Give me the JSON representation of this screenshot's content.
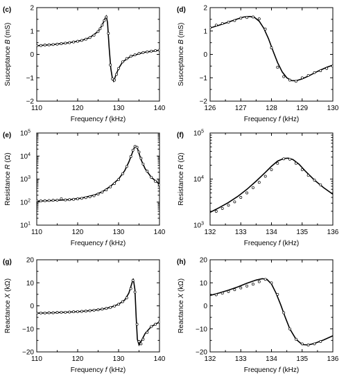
{
  "chart_data": [
    {
      "panel": "(c)",
      "type": "line",
      "xlabel": "Frequency f (kHz)",
      "ylabel": "Susceptance B (mS)",
      "xlim": [
        110,
        140
      ],
      "ylim": [
        -2,
        2
      ],
      "yscale": "linear",
      "xticks": [
        110,
        120,
        130,
        140
      ],
      "xticklabels": [
        "110",
        "120",
        "130",
        "140"
      ],
      "yticks": [
        -2,
        -1,
        0,
        1,
        2
      ],
      "yticklabels": [
        "−2",
        "−1",
        "0",
        "1",
        "2"
      ],
      "series": [
        {
          "style": "solid line",
          "x": [
            110,
            114,
            118,
            121,
            123,
            125,
            126,
            126.6,
            127,
            127.3,
            127.7,
            128.1,
            128.5,
            128.8,
            129.2,
            130,
            131,
            133,
            136,
            140
          ],
          "y": [
            0.37,
            0.42,
            0.5,
            0.6,
            0.72,
            0.98,
            1.25,
            1.5,
            1.63,
            1.35,
            0.3,
            -0.6,
            -1.05,
            -1.15,
            -0.95,
            -0.6,
            -0.32,
            -0.08,
            0.08,
            0.18
          ]
        },
        {
          "style": "open circles",
          "x": [
            110,
            111,
            112,
            113,
            114,
            115,
            116,
            117,
            118,
            119,
            120,
            121,
            122,
            123,
            124,
            125,
            125.5,
            126,
            126.5,
            127,
            127.5,
            128,
            128.5,
            129,
            129.5,
            130,
            131,
            132,
            133,
            134,
            135,
            136,
            137,
            138,
            139,
            140
          ],
          "y": [
            0.37,
            0.38,
            0.4,
            0.41,
            0.42,
            0.44,
            0.46,
            0.48,
            0.5,
            0.53,
            0.56,
            0.6,
            0.65,
            0.72,
            0.82,
            0.98,
            1.1,
            1.25,
            1.45,
            1.6,
            0.9,
            -0.45,
            -1.05,
            -1.1,
            -0.85,
            -0.6,
            -0.32,
            -0.18,
            -0.08,
            -0.02,
            0.04,
            0.08,
            0.11,
            0.14,
            0.16,
            0.18
          ]
        }
      ]
    },
    {
      "panel": "(d)",
      "type": "line",
      "xlabel": "Frequency f (kHz)",
      "ylabel": "Susceptance B (mS)",
      "xlim": [
        126,
        130
      ],
      "ylim": [
        -2,
        2
      ],
      "yscale": "linear",
      "xticks": [
        126,
        127,
        128,
        129,
        130
      ],
      "xticklabels": [
        "126",
        "127",
        "128",
        "129",
        "130"
      ],
      "yticks": [
        -2,
        -1,
        0,
        1,
        2
      ],
      "yticklabels": [
        "−2",
        "−1",
        "0",
        "1",
        "2"
      ],
      "series": [
        {
          "style": "solid line",
          "x": [
            126,
            126.3,
            126.6,
            126.9,
            127.1,
            127.3,
            127.45,
            127.6,
            127.75,
            127.9,
            128.05,
            128.2,
            128.35,
            128.5,
            128.65,
            128.8,
            129,
            129.2,
            129.5,
            129.8,
            130
          ],
          "y": [
            1.13,
            1.25,
            1.38,
            1.52,
            1.6,
            1.62,
            1.58,
            1.42,
            1.12,
            0.68,
            0.15,
            -0.35,
            -0.75,
            -1.0,
            -1.12,
            -1.13,
            -1.05,
            -0.93,
            -0.73,
            -0.55,
            -0.46
          ]
        },
        {
          "style": "open circles",
          "x": [
            126,
            126.2,
            126.4,
            126.6,
            126.8,
            127,
            127.2,
            127.4,
            127.6,
            127.8,
            128,
            128.2,
            128.4,
            128.6,
            128.8,
            129,
            129.2,
            129.4,
            129.6,
            129.8,
            130
          ],
          "y": [
            1.15,
            1.25,
            1.32,
            1.38,
            1.45,
            1.55,
            1.58,
            1.6,
            1.52,
            1.08,
            0.28,
            -0.55,
            -0.95,
            -1.1,
            -1.15,
            -1.0,
            -0.9,
            -0.78,
            -0.7,
            -0.6,
            -0.5
          ]
        }
      ]
    },
    {
      "panel": "(e)",
      "type": "line",
      "xlabel": "Frequency f (kHz)",
      "ylabel": "Resistance R (Ω)",
      "xlim": [
        110,
        140
      ],
      "ylim": [
        10,
        100000
      ],
      "yscale": "log",
      "xticks": [
        110,
        120,
        130,
        140
      ],
      "xticklabels": [
        "110",
        "120",
        "130",
        "140"
      ],
      "yticks": [
        10,
        100,
        1000,
        10000,
        100000
      ],
      "yticklabels": [
        "10",
        "10",
        "10",
        "10",
        "10"
      ],
      "yticksup": [
        "1",
        "2",
        "3",
        "4",
        "5"
      ],
      "series": [
        {
          "style": "solid line",
          "x": [
            110,
            114,
            118,
            121,
            124,
            126,
            128,
            130,
            131.5,
            132.5,
            133.3,
            133.8,
            134.2,
            134.6,
            135,
            135.5,
            136.5,
            138,
            140
          ],
          "y": [
            110,
            118,
            128,
            150,
            200,
            280,
            480,
            1000,
            2300,
            5500,
            13000,
            22000,
            27000,
            22000,
            13000,
            7000,
            2800,
            1200,
            600
          ]
        },
        {
          "style": "open circles",
          "x": [
            110,
            111,
            112,
            113,
            114,
            115,
            116,
            117,
            118,
            119,
            120,
            121,
            122,
            123,
            124,
            125,
            126,
            127,
            128,
            129,
            130,
            131,
            132,
            133,
            133.5,
            134,
            134.5,
            135,
            135.5,
            136,
            137,
            138,
            139,
            140
          ],
          "y": [
            115,
            112,
            115,
            118,
            120,
            122,
            140,
            124,
            128,
            132,
            138,
            146,
            156,
            170,
            190,
            222,
            270,
            340,
            460,
            640,
            950,
            1700,
            3500,
            9500,
            18000,
            26000,
            24000,
            15000,
            8000,
            4500,
            2200,
            1200,
            800,
            560
          ]
        }
      ]
    },
    {
      "panel": "(f)",
      "type": "line",
      "xlabel": "Frequency f (kHz)",
      "ylabel": "Resistance R (Ω)",
      "xlim": [
        132,
        136
      ],
      "ylim": [
        1000,
        100000
      ],
      "yscale": "log",
      "xticks": [
        132,
        133,
        134,
        135,
        136
      ],
      "xticklabels": [
        "132",
        "133",
        "134",
        "135",
        "136"
      ],
      "yticks": [
        1000,
        10000,
        100000
      ],
      "yticklabels": [
        "10",
        "10",
        "10"
      ],
      "yticksup": [
        "3",
        "4",
        "5"
      ],
      "series": [
        {
          "style": "solid line",
          "x": [
            132,
            132.3,
            132.6,
            132.9,
            133.2,
            133.5,
            133.8,
            134.0,
            134.2,
            134.4,
            134.55,
            134.7,
            134.9,
            135.1,
            135.4,
            135.7,
            136
          ],
          "y": [
            1900,
            2400,
            3100,
            4200,
            6000,
            9000,
            14000,
            19000,
            24500,
            28000,
            28500,
            26500,
            21000,
            15000,
            9500,
            6500,
            4700
          ]
        },
        {
          "style": "open circles",
          "x": [
            132.2,
            132.4,
            132.6,
            132.8,
            133,
            133.2,
            133.4,
            133.6,
            133.8,
            134,
            134.2,
            134.4,
            134.6,
            134.8,
            135,
            135.2,
            135.4,
            135.6
          ],
          "y": [
            2000,
            2300,
            2700,
            3200,
            4000,
            5000,
            6500,
            8500,
            11500,
            16000,
            22000,
            27500,
            27000,
            22000,
            16000,
            12000,
            9500,
            7500
          ]
        }
      ]
    },
    {
      "panel": "(g)",
      "type": "line",
      "xlabel": "Frequency f (kHz)",
      "ylabel": "Reactance X (kΩ)",
      "xlim": [
        110,
        140
      ],
      "ylim": [
        -20,
        20
      ],
      "yscale": "linear",
      "xticks": [
        110,
        120,
        130,
        140
      ],
      "xticklabels": [
        "110",
        "120",
        "130",
        "140"
      ],
      "yticks": [
        -20,
        -10,
        0,
        10,
        20
      ],
      "yticklabels": [
        "−20",
        "−10",
        "0",
        "10",
        "20"
      ],
      "series": [
        {
          "style": "solid line",
          "x": [
            110,
            114,
            118,
            121,
            124,
            126,
            128,
            130,
            131.5,
            132.5,
            133.2,
            133.6,
            134.0,
            134.3,
            134.6,
            135,
            135.5,
            136.5,
            138,
            140
          ],
          "y": [
            -3.2,
            -3.0,
            -2.7,
            -2.4,
            -1.9,
            -1.4,
            -0.7,
            0.7,
            2.5,
            5.5,
            9.5,
            11.8,
            7,
            -5,
            -14.5,
            -17,
            -15.5,
            -12,
            -9,
            -7
          ]
        },
        {
          "style": "open circles",
          "x": [
            110,
            111,
            112,
            113,
            114,
            115,
            116,
            117,
            118,
            119,
            120,
            121,
            122,
            123,
            124,
            125,
            126,
            127,
            128,
            129,
            130,
            131,
            132,
            133,
            133.5,
            134,
            134.5,
            135,
            135.5,
            136,
            137,
            138,
            139,
            140
          ],
          "y": [
            -3.2,
            -3.1,
            -3.1,
            -3.0,
            -3.0,
            -2.9,
            -2.8,
            -2.8,
            -2.7,
            -2.6,
            -2.5,
            -2.4,
            -2.3,
            -2.1,
            -1.9,
            -1.7,
            -1.4,
            -1.1,
            -0.7,
            -0.1,
            0.7,
            1.8,
            3.5,
            7.5,
            11,
            6,
            -8,
            -15.5,
            -16.5,
            -14.5,
            -11.5,
            -9,
            -8,
            -7
          ]
        }
      ]
    },
    {
      "panel": "(h)",
      "type": "line",
      "xlabel": "Frequency f (kHz)",
      "ylabel": "Reactance X (kΩ)",
      "xlim": [
        132,
        136
      ],
      "ylim": [
        -20,
        20
      ],
      "yscale": "linear",
      "xticks": [
        132,
        133,
        134,
        135,
        136
      ],
      "xticklabels": [
        "132",
        "133",
        "134",
        "135",
        "136"
      ],
      "yticks": [
        -20,
        -10,
        0,
        10,
        20
      ],
      "yticklabels": [
        "−20",
        "−10",
        "0",
        "10",
        "20"
      ],
      "series": [
        {
          "style": "solid line",
          "x": [
            132,
            132.3,
            132.6,
            132.9,
            133.2,
            133.5,
            133.7,
            133.85,
            134.0,
            134.15,
            134.3,
            134.45,
            134.6,
            134.8,
            135.0,
            135.2,
            135.4,
            135.7,
            136
          ],
          "y": [
            4.5,
            5.6,
            6.8,
            8.2,
            9.8,
            11.2,
            11.8,
            11.5,
            9.5,
            5.5,
            0.5,
            -5,
            -10,
            -14.5,
            -16.8,
            -17,
            -16.3,
            -14.8,
            -13
          ]
        },
        {
          "style": "open circles",
          "x": [
            132.2,
            132.4,
            132.6,
            132.8,
            133,
            133.2,
            133.4,
            133.6,
            133.8,
            134,
            134.2,
            134.4,
            134.6,
            134.8,
            135,
            135.2,
            135.4,
            135.6
          ],
          "y": [
            4.8,
            5.5,
            6.2,
            7.0,
            7.8,
            8.6,
            9.4,
            10.5,
            11.5,
            10,
            5,
            -3,
            -10,
            -14.5,
            -16.5,
            -17,
            -16.5,
            -15.5
          ]
        }
      ]
    }
  ]
}
